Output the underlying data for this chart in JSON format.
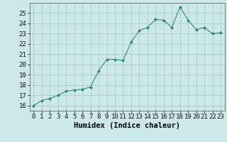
{
  "x": [
    0,
    1,
    2,
    3,
    4,
    5,
    6,
    7,
    8,
    9,
    10,
    11,
    12,
    13,
    14,
    15,
    16,
    17,
    18,
    19,
    20,
    21,
    22,
    23
  ],
  "y": [
    16.0,
    16.5,
    16.7,
    17.0,
    17.4,
    17.5,
    17.6,
    17.8,
    19.4,
    20.5,
    20.5,
    20.4,
    22.2,
    23.3,
    23.6,
    24.4,
    24.3,
    23.6,
    25.6,
    24.3,
    23.4,
    23.6,
    23.0,
    23.1
  ],
  "xlabel": "Humidex (Indice chaleur)",
  "xlim": [
    -0.5,
    23.5
  ],
  "ylim": [
    15.5,
    26.0
  ],
  "yticks": [
    16,
    17,
    18,
    19,
    20,
    21,
    22,
    23,
    24,
    25
  ],
  "xticks": [
    0,
    1,
    2,
    3,
    4,
    5,
    6,
    7,
    8,
    9,
    10,
    11,
    12,
    13,
    14,
    15,
    16,
    17,
    18,
    19,
    20,
    21,
    22,
    23
  ],
  "line_color": "#2e8b7a",
  "marker_color": "#2e8b7a",
  "bg_color": "#cce8e8",
  "grid_color": "#aacccc",
  "tick_label_fontsize": 6.5,
  "xlabel_fontsize": 7.5
}
